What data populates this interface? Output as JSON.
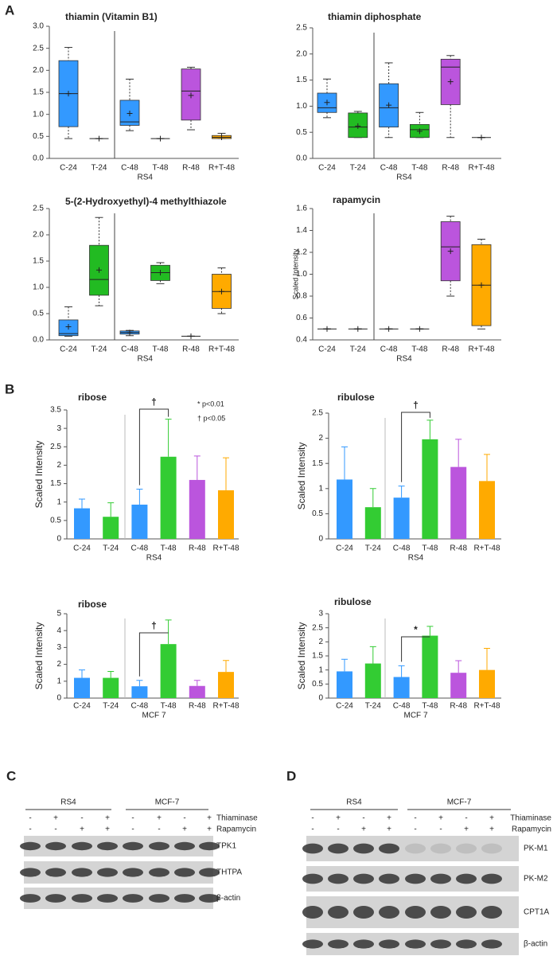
{
  "panel_labels": [
    "A",
    "B",
    "C",
    "D"
  ],
  "chart_data": [
    {
      "type": "box",
      "title": "thiamin (Vitamin B1)",
      "categories": [
        "C-24",
        "T-24",
        "C-48",
        "T-48",
        "R-48",
        "R+T-48"
      ],
      "xlabel": "RS4",
      "colors": [
        "#3399ff",
        "#22bb22",
        "#3399ff",
        "#22bb22",
        "#bb55dd",
        "#ffaa00"
      ],
      "max": [
        2.52,
        0.45,
        1.8,
        0.45,
        2.07,
        0.57
      ],
      "q3": [
        2.22,
        0.45,
        1.32,
        0.45,
        2.03,
        0.52
      ],
      "median": [
        1.47,
        0.45,
        0.83,
        0.45,
        1.53,
        0.48
      ],
      "q1": [
        0.72,
        0.45,
        0.75,
        0.45,
        0.87,
        0.45
      ],
      "min": [
        0.45,
        0.45,
        0.63,
        0.45,
        0.65,
        0.45
      ],
      "mean": [
        1.47,
        0.45,
        1.02,
        0.45,
        1.43,
        0.48
      ],
      "ylim": [
        0,
        3
      ],
      "yticks": [
        {
          "value": 0,
          "label": "0.0"
        },
        0.5,
        {
          "value": 1,
          "label": "1.0"
        },
        1.5,
        {
          "value": 2,
          "label": "2.0"
        },
        2.5,
        {
          "value": 3,
          "label": "3.0"
        }
      ]
    },
    {
      "type": "box",
      "title": "thiamin diphosphate",
      "categories": [
        "C-24",
        "T-24",
        "C-48",
        "T-48",
        "R-48",
        "R+T-48"
      ],
      "xlabel": "RS4",
      "colors": [
        "#3399ff",
        "#22bb22",
        "#3399ff",
        "#22bb22",
        "#bb55dd",
        "#ffaa00"
      ],
      "max": [
        1.52,
        0.9,
        1.83,
        0.88,
        1.97,
        0.4
      ],
      "q3": [
        1.25,
        0.87,
        1.43,
        0.65,
        1.9,
        0.4
      ],
      "median": [
        0.97,
        0.6,
        0.97,
        0.55,
        1.75,
        0.4
      ],
      "q1": [
        0.88,
        0.4,
        0.6,
        0.4,
        1.03,
        0.4
      ],
      "min": [
        0.78,
        0.4,
        0.4,
        0.4,
        0.4,
        0.4
      ],
      "mean": [
        1.07,
        0.62,
        1.02,
        0.52,
        1.47,
        0.4
      ],
      "ylim": [
        0,
        2.5
      ],
      "yticks": [
        {
          "value": 0,
          "label": "0.0"
        },
        0.5,
        {
          "value": 1,
          "label": "1.0"
        },
        1.5,
        {
          "value": 2,
          "label": "2.0"
        },
        2.5
      ]
    },
    {
      "type": "box",
      "title": "5-(2-Hydroxyethyl)-4 methylthiazole",
      "categories": [
        "C-24",
        "T-24",
        "C-48",
        "T-48",
        "R-48",
        "R+T-48"
      ],
      "xlabel": "RS4",
      "colors": [
        "#3399ff",
        "#22bb22",
        "#3399ff",
        "#22bb22",
        "#bb55dd",
        "#ffaa00"
      ],
      "max": [
        0.63,
        2.33,
        0.18,
        1.47,
        0.07,
        1.37
      ],
      "q3": [
        0.38,
        1.8,
        0.17,
        1.42,
        0.07,
        1.25
      ],
      "median": [
        0.12,
        1.15,
        0.14,
        1.28,
        0.07,
        0.92
      ],
      "q1": [
        0.08,
        0.85,
        0.11,
        1.13,
        0.07,
        0.6
      ],
      "min": [
        0.07,
        0.65,
        0.08,
        1.07,
        0.07,
        0.5
      ],
      "mean": [
        0.25,
        1.33,
        0.14,
        1.28,
        0.07,
        0.92
      ],
      "ylim": [
        0,
        2.5
      ],
      "yticks": [
        {
          "value": 0,
          "label": "0.0"
        },
        0.5,
        {
          "value": 1,
          "label": "1.0"
        },
        1.5,
        {
          "value": 2,
          "label": "2.0"
        },
        2.5
      ]
    },
    {
      "type": "box",
      "title": "rapamycin",
      "ylabel": "Scaled Intensity",
      "categories": [
        "C-24",
        "T-24",
        "C-48",
        "T-48",
        "R-48",
        "R+T-48"
      ],
      "xlabel": "RS4",
      "colors": [
        "#3399ff",
        "#22bb22",
        "#3399ff",
        "#22bb22",
        "#bb55dd",
        "#ffaa00"
      ],
      "max": [
        0.5,
        0.5,
        0.5,
        0.5,
        1.53,
        1.32
      ],
      "q3": [
        0.5,
        0.5,
        0.5,
        0.5,
        1.48,
        1.27
      ],
      "median": [
        0.5,
        0.5,
        0.5,
        0.5,
        1.25,
        0.9
      ],
      "q1": [
        0.5,
        0.5,
        0.5,
        0.5,
        0.94,
        0.53
      ],
      "min": [
        0.5,
        0.5,
        0.5,
        0.5,
        0.8,
        0.5
      ],
      "mean": [
        0.5,
        0.5,
        0.5,
        0.5,
        1.21,
        0.9
      ],
      "ylim": [
        0.4,
        1.6
      ],
      "yticks": [
        0.4,
        0.6,
        0.8,
        {
          "value": 1,
          "label": "1.0"
        },
        1.2,
        1.4,
        1.6
      ]
    },
    {
      "type": "bar",
      "title": "ribose",
      "ylabel": "Scaled Intensity",
      "categories": [
        "C-24",
        "T-24",
        "C-48",
        "T-48",
        "R-48",
        "R+T-48"
      ],
      "xlabel": "RS4",
      "colors": [
        "#3399ff",
        "#33cc33",
        "#3399ff",
        "#33cc33",
        "#bb55dd",
        "#ffaa00"
      ],
      "values": [
        0.83,
        0.6,
        0.93,
        2.23,
        1.6,
        1.32
      ],
      "errors": [
        0.25,
        0.38,
        0.42,
        1.02,
        0.65,
        0.88
      ],
      "significance": "†",
      "annotations": [
        "* p<0.01",
        "† p<0.05"
      ],
      "ylim": [
        0,
        3.5
      ],
      "yticks": [
        0,
        0.5,
        1,
        1.5,
        2,
        2.5,
        3,
        3.5
      ]
    },
    {
      "type": "bar",
      "title": "ribulose",
      "ylabel": "Scaled Intensity",
      "categories": [
        "C-24",
        "T-24",
        "C-48",
        "T-48",
        "R-48",
        "R+T-48"
      ],
      "xlabel": "RS4",
      "colors": [
        "#3399ff",
        "#33cc33",
        "#3399ff",
        "#33cc33",
        "#bb55dd",
        "#ffaa00"
      ],
      "values": [
        1.18,
        0.63,
        0.82,
        1.98,
        1.43,
        1.15
      ],
      "errors": [
        0.65,
        0.37,
        0.23,
        0.38,
        0.55,
        0.53
      ],
      "significance": "†",
      "ylim": [
        0,
        2.5
      ],
      "yticks": [
        0,
        0.5,
        1,
        1.5,
        2,
        2.5
      ]
    },
    {
      "type": "bar",
      "title": "ribose",
      "ylabel": "Scaled Intensity",
      "categories": [
        "C-24",
        "T-24",
        "C-48",
        "T-48",
        "R-48",
        "R+T-48"
      ],
      "xlabel": "MCF 7",
      "colors": [
        "#3399ff",
        "#33cc33",
        "#3399ff",
        "#33cc33",
        "#bb55dd",
        "#ffaa00"
      ],
      "values": [
        1.2,
        1.2,
        0.7,
        3.2,
        0.72,
        1.55
      ],
      "errors": [
        0.47,
        0.38,
        0.35,
        1.43,
        0.33,
        0.68
      ],
      "significance": "†",
      "ylim": [
        0,
        5
      ],
      "yticks": [
        0,
        1,
        2,
        3,
        4,
        5
      ]
    },
    {
      "type": "bar",
      "title": "ribulose",
      "ylabel": "Scaled Intensity",
      "categories": [
        "C-24",
        "T-24",
        "C-48",
        "T-48",
        "R-48",
        "R+T-48"
      ],
      "xlabel": "MCF 7",
      "colors": [
        "#3399ff",
        "#33cc33",
        "#3399ff",
        "#33cc33",
        "#bb55dd",
        "#ffaa00"
      ],
      "values": [
        0.95,
        1.23,
        0.75,
        2.22,
        0.9,
        1.0
      ],
      "errors": [
        0.43,
        0.6,
        0.4,
        0.33,
        0.43,
        0.77
      ],
      "significance": "*",
      "ylim": [
        0,
        3
      ],
      "yticks": [
        0,
        0.5,
        1,
        1.5,
        2,
        2.5,
        3
      ]
    }
  ],
  "blots": [
    {
      "groups": [
        "RS4",
        "MCF-7"
      ],
      "treatments": [
        {
          "name": "Thiaminase",
          "signs": [
            "-",
            "+",
            "-",
            "+",
            "-",
            "+",
            "-",
            "+"
          ]
        },
        {
          "name": "Rapamycin",
          "signs": [
            "-",
            "-",
            "+",
            "+",
            "-",
            "-",
            "+",
            "+"
          ]
        }
      ],
      "bands": [
        "TPK1",
        "THTPA",
        "β-actin"
      ]
    },
    {
      "groups": [
        "RS4",
        "MCF-7"
      ],
      "treatments": [
        {
          "name": "Thiaminase",
          "signs": [
            "-",
            "+",
            "-",
            "+",
            "-",
            "+",
            "-",
            "+"
          ]
        },
        {
          "name": "Rapamycin",
          "signs": [
            "-",
            "-",
            "+",
            "+",
            "-",
            "-",
            "+",
            "+"
          ]
        }
      ],
      "bands": [
        "PK-M1",
        "PK-M2",
        "CPT1A",
        "β-actin"
      ]
    }
  ]
}
